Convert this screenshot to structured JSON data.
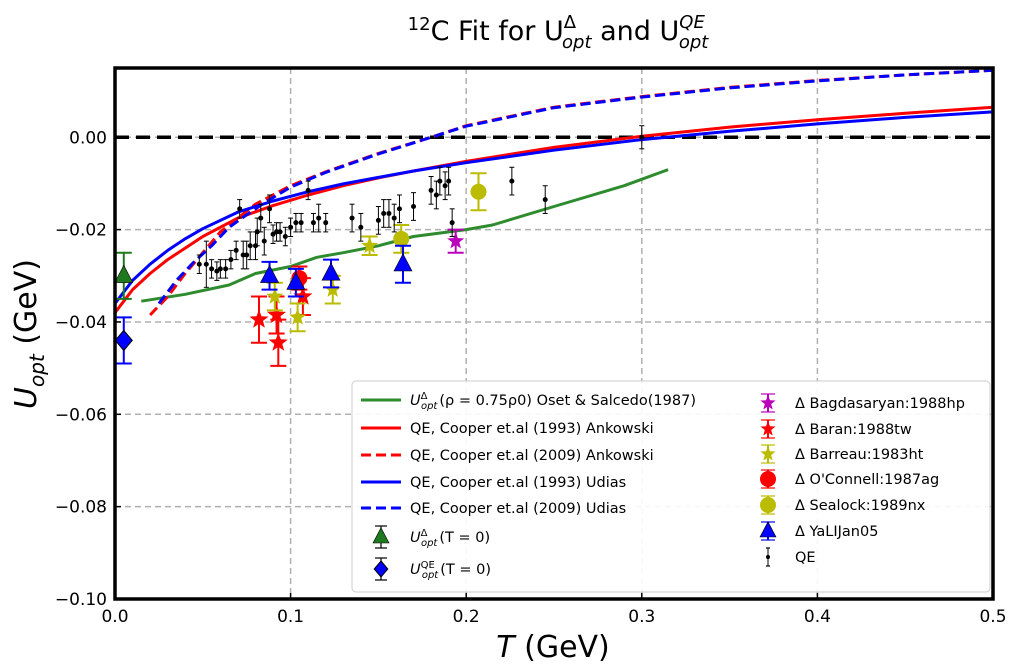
{
  "chart_data": {
    "type": "scatter",
    "title": {
      "pre": "",
      "sup1": "12",
      "mid1": "C Fit for U",
      "sup2": "Δ",
      "sub2": "opt",
      "mid2": " and U",
      "sup3": "QE",
      "sub3": "opt"
    },
    "xlabel": {
      "main": "T",
      "unit": " (GeV)"
    },
    "ylabel": {
      "main": "U",
      "sub": "opt",
      "unit": "  (GeV)"
    },
    "xlim": [
      0.0,
      0.5
    ],
    "ylim": [
      -0.1,
      0.015
    ],
    "x_ticks": [
      0.0,
      0.1,
      0.2,
      0.3,
      0.4,
      0.5
    ],
    "x_tick_labels": [
      "0.0",
      "0.1",
      "0.2",
      "0.3",
      "0.4",
      "0.5"
    ],
    "y_ticks": [
      -0.1,
      -0.08,
      -0.06,
      -0.04,
      -0.02,
      0.0
    ],
    "y_tick_labels": [
      "−0.10",
      "−0.08",
      "−0.06",
      "−0.04",
      "−0.02",
      "0.00"
    ],
    "grid": true,
    "legend_placement": "lower-right",
    "zero_line": {
      "y": 0.0,
      "color": "#000000"
    },
    "lines": [
      {
        "id": "oset",
        "legend_text": "(ρ = 0.75ρ0)  Oset & Salcedo(1987)",
        "legend_prefix": "U",
        "legend_sup": "Δ",
        "legend_sub": "opt",
        "color": "#2e8b2e",
        "dash": "solid",
        "x": [
          0.015,
          0.04,
          0.065,
          0.08,
          0.1,
          0.115,
          0.13,
          0.15,
          0.17,
          0.2,
          0.215,
          0.25,
          0.29,
          0.315
        ],
        "y": [
          -0.0355,
          -0.034,
          -0.032,
          -0.0295,
          -0.028,
          -0.026,
          -0.025,
          -0.0235,
          -0.0215,
          -0.02,
          -0.019,
          -0.015,
          -0.0105,
          -0.007
        ]
      },
      {
        "id": "cooper93-ank",
        "legend_text": "QE, Cooper et.al (1993) Ankowski",
        "color": "#ff0000",
        "dash": "solid",
        "x": [
          0.0,
          0.01,
          0.02,
          0.03,
          0.04,
          0.05,
          0.07,
          0.09,
          0.11,
          0.13,
          0.15,
          0.17,
          0.2,
          0.25,
          0.3,
          0.35,
          0.4,
          0.45,
          0.5
        ],
        "y": [
          -0.038,
          -0.033,
          -0.0295,
          -0.0265,
          -0.024,
          -0.0215,
          -0.0175,
          -0.0148,
          -0.0125,
          -0.0105,
          -0.0088,
          -0.0073,
          -0.0052,
          -0.0022,
          0.0002,
          0.0022,
          0.0038,
          0.0052,
          0.0065
        ]
      },
      {
        "id": "cooper09-ank",
        "legend_text": "QE, Cooper et.al (2009) Ankowski",
        "color": "#ff0000",
        "dash": "dashed",
        "x": [
          0.02,
          0.03,
          0.04,
          0.05,
          0.06,
          0.07,
          0.08,
          0.1,
          0.12,
          0.15,
          0.18,
          0.2,
          0.25,
          0.3,
          0.35,
          0.4,
          0.45,
          0.5
        ],
        "y": [
          -0.0385,
          -0.0345,
          -0.0295,
          -0.025,
          -0.0205,
          -0.0175,
          -0.0145,
          -0.0105,
          -0.0075,
          -0.0035,
          0.0,
          0.0025,
          0.0065,
          0.0088,
          0.0108,
          0.0123,
          0.0135,
          0.0145
        ]
      },
      {
        "id": "cooper93-udi",
        "legend_text": "QE, Cooper et.al (1993) Udias",
        "color": "#0000ff",
        "dash": "solid",
        "x": [
          0.0,
          0.01,
          0.02,
          0.03,
          0.04,
          0.05,
          0.07,
          0.09,
          0.11,
          0.13,
          0.15,
          0.17,
          0.2,
          0.25,
          0.3,
          0.35,
          0.4,
          0.45,
          0.5
        ],
        "y": [
          -0.036,
          -0.031,
          -0.0275,
          -0.0245,
          -0.022,
          -0.0198,
          -0.0162,
          -0.0138,
          -0.0118,
          -0.0101,
          -0.0087,
          -0.0073,
          -0.0055,
          -0.0028,
          -0.0005,
          0.0013,
          0.0029,
          0.0043,
          0.0055
        ]
      },
      {
        "id": "cooper09-udi",
        "legend_text": "QE, Cooper et.al (2009) Udias",
        "color": "#0000ff",
        "dash": "dashed",
        "x": [
          0.025,
          0.035,
          0.045,
          0.055,
          0.065,
          0.075,
          0.085,
          0.1,
          0.12,
          0.15,
          0.18,
          0.2,
          0.25,
          0.3,
          0.35,
          0.4,
          0.45,
          0.5
        ],
        "y": [
          -0.036,
          -0.031,
          -0.027,
          -0.0235,
          -0.0195,
          -0.0168,
          -0.0142,
          -0.0108,
          -0.0076,
          -0.0036,
          0.0,
          0.0024,
          0.0064,
          0.0087,
          0.0107,
          0.0122,
          0.0135,
          0.0145
        ]
      }
    ],
    "marker_series": [
      {
        "id": "t0-delta",
        "legend_prefix": "U",
        "legend_sup": "Δ",
        "legend_sub": "opt",
        "legend_text": "(T = 0)",
        "marker": "triangle",
        "color": "#1f7a1f",
        "size": 9,
        "points": [
          {
            "x": 0.005,
            "y": -0.03,
            "err": 0.005
          }
        ]
      },
      {
        "id": "t0-qe",
        "legend_prefix": "U",
        "legend_sup": "QE",
        "legend_sub": "opt",
        "legend_text": "(T = 0)",
        "marker": "diamond",
        "color": "#0000ff",
        "size": 10,
        "points": [
          {
            "x": 0.005,
            "y": -0.044,
            "err": 0.005
          }
        ]
      },
      {
        "id": "bagdasaryan",
        "legend_text": "Δ Bagdasaryan:1988hp",
        "marker": "star",
        "color": "#bb00bb",
        "size": 9,
        "points": [
          {
            "x": 0.194,
            "y": -0.0225,
            "err": 0.0025
          }
        ]
      },
      {
        "id": "baran",
        "legend_text": "Δ Baran:1988tw",
        "marker": "star",
        "color": "#ff0000",
        "size": 10,
        "points": [
          {
            "x": 0.082,
            "y": -0.0395,
            "err": 0.005
          },
          {
            "x": 0.092,
            "y": -0.0385,
            "err": 0.004
          },
          {
            "x": 0.093,
            "y": -0.0445,
            "err": 0.005
          },
          {
            "x": 0.107,
            "y": -0.0345,
            "err": 0.004
          }
        ]
      },
      {
        "id": "barreau",
        "legend_text": "Δ Barreau:1983ht",
        "marker": "star",
        "color": "#bbbb00",
        "size": 9,
        "points": [
          {
            "x": 0.091,
            "y": -0.0345,
            "err": 0.003
          },
          {
            "x": 0.104,
            "y": -0.039,
            "err": 0.003
          },
          {
            "x": 0.124,
            "y": -0.033,
            "err": 0.003
          },
          {
            "x": 0.145,
            "y": -0.0235,
            "err": 0.002
          }
        ]
      },
      {
        "id": "oconnell",
        "legend_text": "Δ O'Connell:1987ag",
        "marker": "circle",
        "color": "#ff0000",
        "size": 8,
        "points": [
          {
            "x": 0.105,
            "y": -0.0305,
            "err": 0.0025
          }
        ]
      },
      {
        "id": "sealock",
        "legend_text": "Δ Sealock:1989nx",
        "marker": "circle",
        "color": "#bbbb00",
        "size": 8,
        "points": [
          {
            "x": 0.163,
            "y": -0.022,
            "err": 0.003
          },
          {
            "x": 0.207,
            "y": -0.0118,
            "err": 0.004
          }
        ]
      },
      {
        "id": "yalijan",
        "legend_text": "Δ YaLIJan05",
        "marker": "triangle",
        "color": "#0000ff",
        "size": 9,
        "points": [
          {
            "x": 0.088,
            "y": -0.03,
            "err": 0.003
          },
          {
            "x": 0.103,
            "y": -0.0315,
            "err": 0.003
          },
          {
            "x": 0.123,
            "y": -0.0295,
            "err": 0.003
          },
          {
            "x": 0.164,
            "y": -0.0275,
            "err": 0.004
          }
        ]
      },
      {
        "id": "qe",
        "legend_text": "QE",
        "marker": "dot",
        "color": "#000000",
        "size": 2.5,
        "points": [
          {
            "x": 0.048,
            "y": -0.0275,
            "err": 0.002
          },
          {
            "x": 0.052,
            "y": -0.0275,
            "err": 0.005
          },
          {
            "x": 0.055,
            "y": -0.0285,
            "err": 0.002
          },
          {
            "x": 0.058,
            "y": -0.029,
            "err": 0.002
          },
          {
            "x": 0.06,
            "y": -0.0285,
            "err": 0.002
          },
          {
            "x": 0.063,
            "y": -0.0285,
            "err": 0.002
          },
          {
            "x": 0.066,
            "y": -0.0265,
            "err": 0.002
          },
          {
            "x": 0.069,
            "y": -0.0245,
            "err": 0.002
          },
          {
            "x": 0.071,
            "y": -0.0155,
            "err": 0.002
          },
          {
            "x": 0.073,
            "y": -0.0255,
            "err": 0.003
          },
          {
            "x": 0.075,
            "y": -0.0255,
            "err": 0.003
          },
          {
            "x": 0.077,
            "y": -0.0235,
            "err": 0.003
          },
          {
            "x": 0.08,
            "y": -0.0235,
            "err": 0.003
          },
          {
            "x": 0.081,
            "y": -0.0205,
            "err": 0.003
          },
          {
            "x": 0.083,
            "y": -0.0175,
            "err": 0.003
          },
          {
            "x": 0.085,
            "y": -0.0225,
            "err": 0.003
          },
          {
            "x": 0.088,
            "y": -0.0155,
            "err": 0.003
          },
          {
            "x": 0.09,
            "y": -0.021,
            "err": 0.002
          },
          {
            "x": 0.092,
            "y": -0.0205,
            "err": 0.002
          },
          {
            "x": 0.094,
            "y": -0.0205,
            "err": 0.002
          },
          {
            "x": 0.097,
            "y": -0.0215,
            "err": 0.002
          },
          {
            "x": 0.1,
            "y": -0.0195,
            "err": 0.002
          },
          {
            "x": 0.103,
            "y": -0.0185,
            "err": 0.002
          },
          {
            "x": 0.106,
            "y": -0.0185,
            "err": 0.002
          },
          {
            "x": 0.11,
            "y": -0.0115,
            "err": 0.002
          },
          {
            "x": 0.113,
            "y": -0.0185,
            "err": 0.002
          },
          {
            "x": 0.116,
            "y": -0.0175,
            "err": 0.003
          },
          {
            "x": 0.12,
            "y": -0.0185,
            "err": 0.002
          },
          {
            "x": 0.135,
            "y": -0.0175,
            "err": 0.003
          },
          {
            "x": 0.14,
            "y": -0.0195,
            "err": 0.003
          },
          {
            "x": 0.15,
            "y": -0.018,
            "err": 0.003
          },
          {
            "x": 0.153,
            "y": -0.0165,
            "err": 0.003
          },
          {
            "x": 0.156,
            "y": -0.0165,
            "err": 0.003
          },
          {
            "x": 0.159,
            "y": -0.0175,
            "err": 0.003
          },
          {
            "x": 0.162,
            "y": -0.0155,
            "err": 0.003
          },
          {
            "x": 0.17,
            "y": -0.015,
            "err": 0.003
          },
          {
            "x": 0.18,
            "y": -0.0115,
            "err": 0.003
          },
          {
            "x": 0.183,
            "y": -0.0125,
            "err": 0.003
          },
          {
            "x": 0.185,
            "y": -0.0095,
            "err": 0.003
          },
          {
            "x": 0.188,
            "y": -0.0105,
            "err": 0.003
          },
          {
            "x": 0.19,
            "y": -0.0095,
            "err": 0.003
          },
          {
            "x": 0.192,
            "y": -0.0185,
            "err": 0.003
          },
          {
            "x": 0.226,
            "y": -0.0095,
            "err": 0.003
          },
          {
            "x": 0.245,
            "y": -0.0135,
            "err": 0.003
          },
          {
            "x": 0.3,
            "y": 0.0,
            "err": 0.0025
          }
        ]
      }
    ]
  }
}
